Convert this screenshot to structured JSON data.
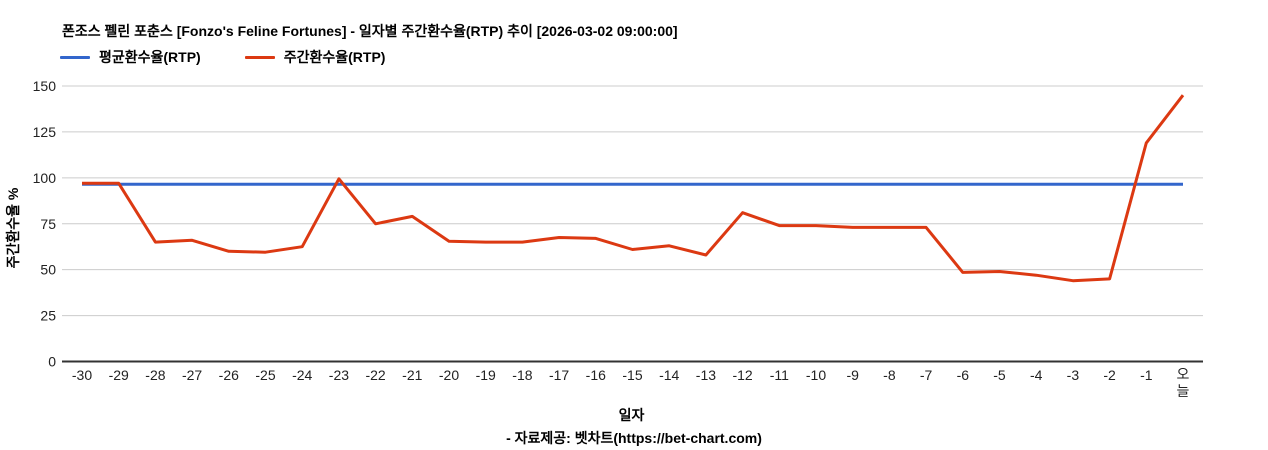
{
  "header": {
    "title": "폰조스 펠린 포춘스 [Fonzo's Feline Fortunes] - 일자별 주간환수율(RTP) 추이 [2026-03-02 09:00:00]"
  },
  "legend": {
    "items": [
      {
        "label": "평균환수율(RTP)",
        "color": "#3366CC"
      },
      {
        "label": "주간환수율(RTP)",
        "color": "#DC3912"
      }
    ]
  },
  "axes": {
    "x_title": "일자",
    "y_title": "주간환수율 %"
  },
  "footer": {
    "text": "- 자료제공: 벳차트(https://bet-chart.com)"
  },
  "colors": {
    "average_line": "#3366CC",
    "weekly_line": "#DC3912",
    "gridline": "#CCCCCC",
    "axis_baseline": "#333333",
    "tick_text": "#222222"
  },
  "chart_data": {
    "type": "line",
    "title": "폰조스 펠린 포춘스 [Fonzo's Feline Fortunes] - 일자별 주간환수율(RTP) 추이 [2026-03-02 09:00:00]",
    "xlabel": "일자",
    "ylabel": "주간환수율 %",
    "ylim": [
      0,
      150
    ],
    "yticks": [
      0,
      25,
      50,
      75,
      100,
      125,
      150
    ],
    "grid": true,
    "legend_position": "top-left",
    "categories": [
      "-30",
      "-29",
      "-28",
      "-27",
      "-26",
      "-25",
      "-24",
      "-23",
      "-22",
      "-21",
      "-20",
      "-19",
      "-18",
      "-17",
      "-16",
      "-15",
      "-14",
      "-13",
      "-12",
      "-11",
      "-10",
      "-9",
      "-8",
      "-7",
      "-6",
      "-5",
      "-4",
      "-3",
      "-2",
      "-1",
      "오늘"
    ],
    "series": [
      {
        "name": "평균환수율(RTP)",
        "color": "#3366CC",
        "values": [
          96.5,
          96.5,
          96.5,
          96.5,
          96.5,
          96.5,
          96.5,
          96.5,
          96.5,
          96.5,
          96.5,
          96.5,
          96.5,
          96.5,
          96.5,
          96.5,
          96.5,
          96.5,
          96.5,
          96.5,
          96.5,
          96.5,
          96.5,
          96.5,
          96.5,
          96.5,
          96.5,
          96.5,
          96.5,
          96.5,
          96.5
        ]
      },
      {
        "name": "주간환수율(RTP)",
        "color": "#DC3912",
        "values": [
          97,
          97,
          65,
          66,
          60,
          59.5,
          62.5,
          99.5,
          75,
          79,
          65.5,
          65,
          65,
          67.5,
          67,
          61,
          63,
          58,
          81,
          74,
          74,
          73,
          73,
          73,
          48.5,
          49,
          47,
          44,
          45,
          119,
          145
        ]
      }
    ]
  }
}
